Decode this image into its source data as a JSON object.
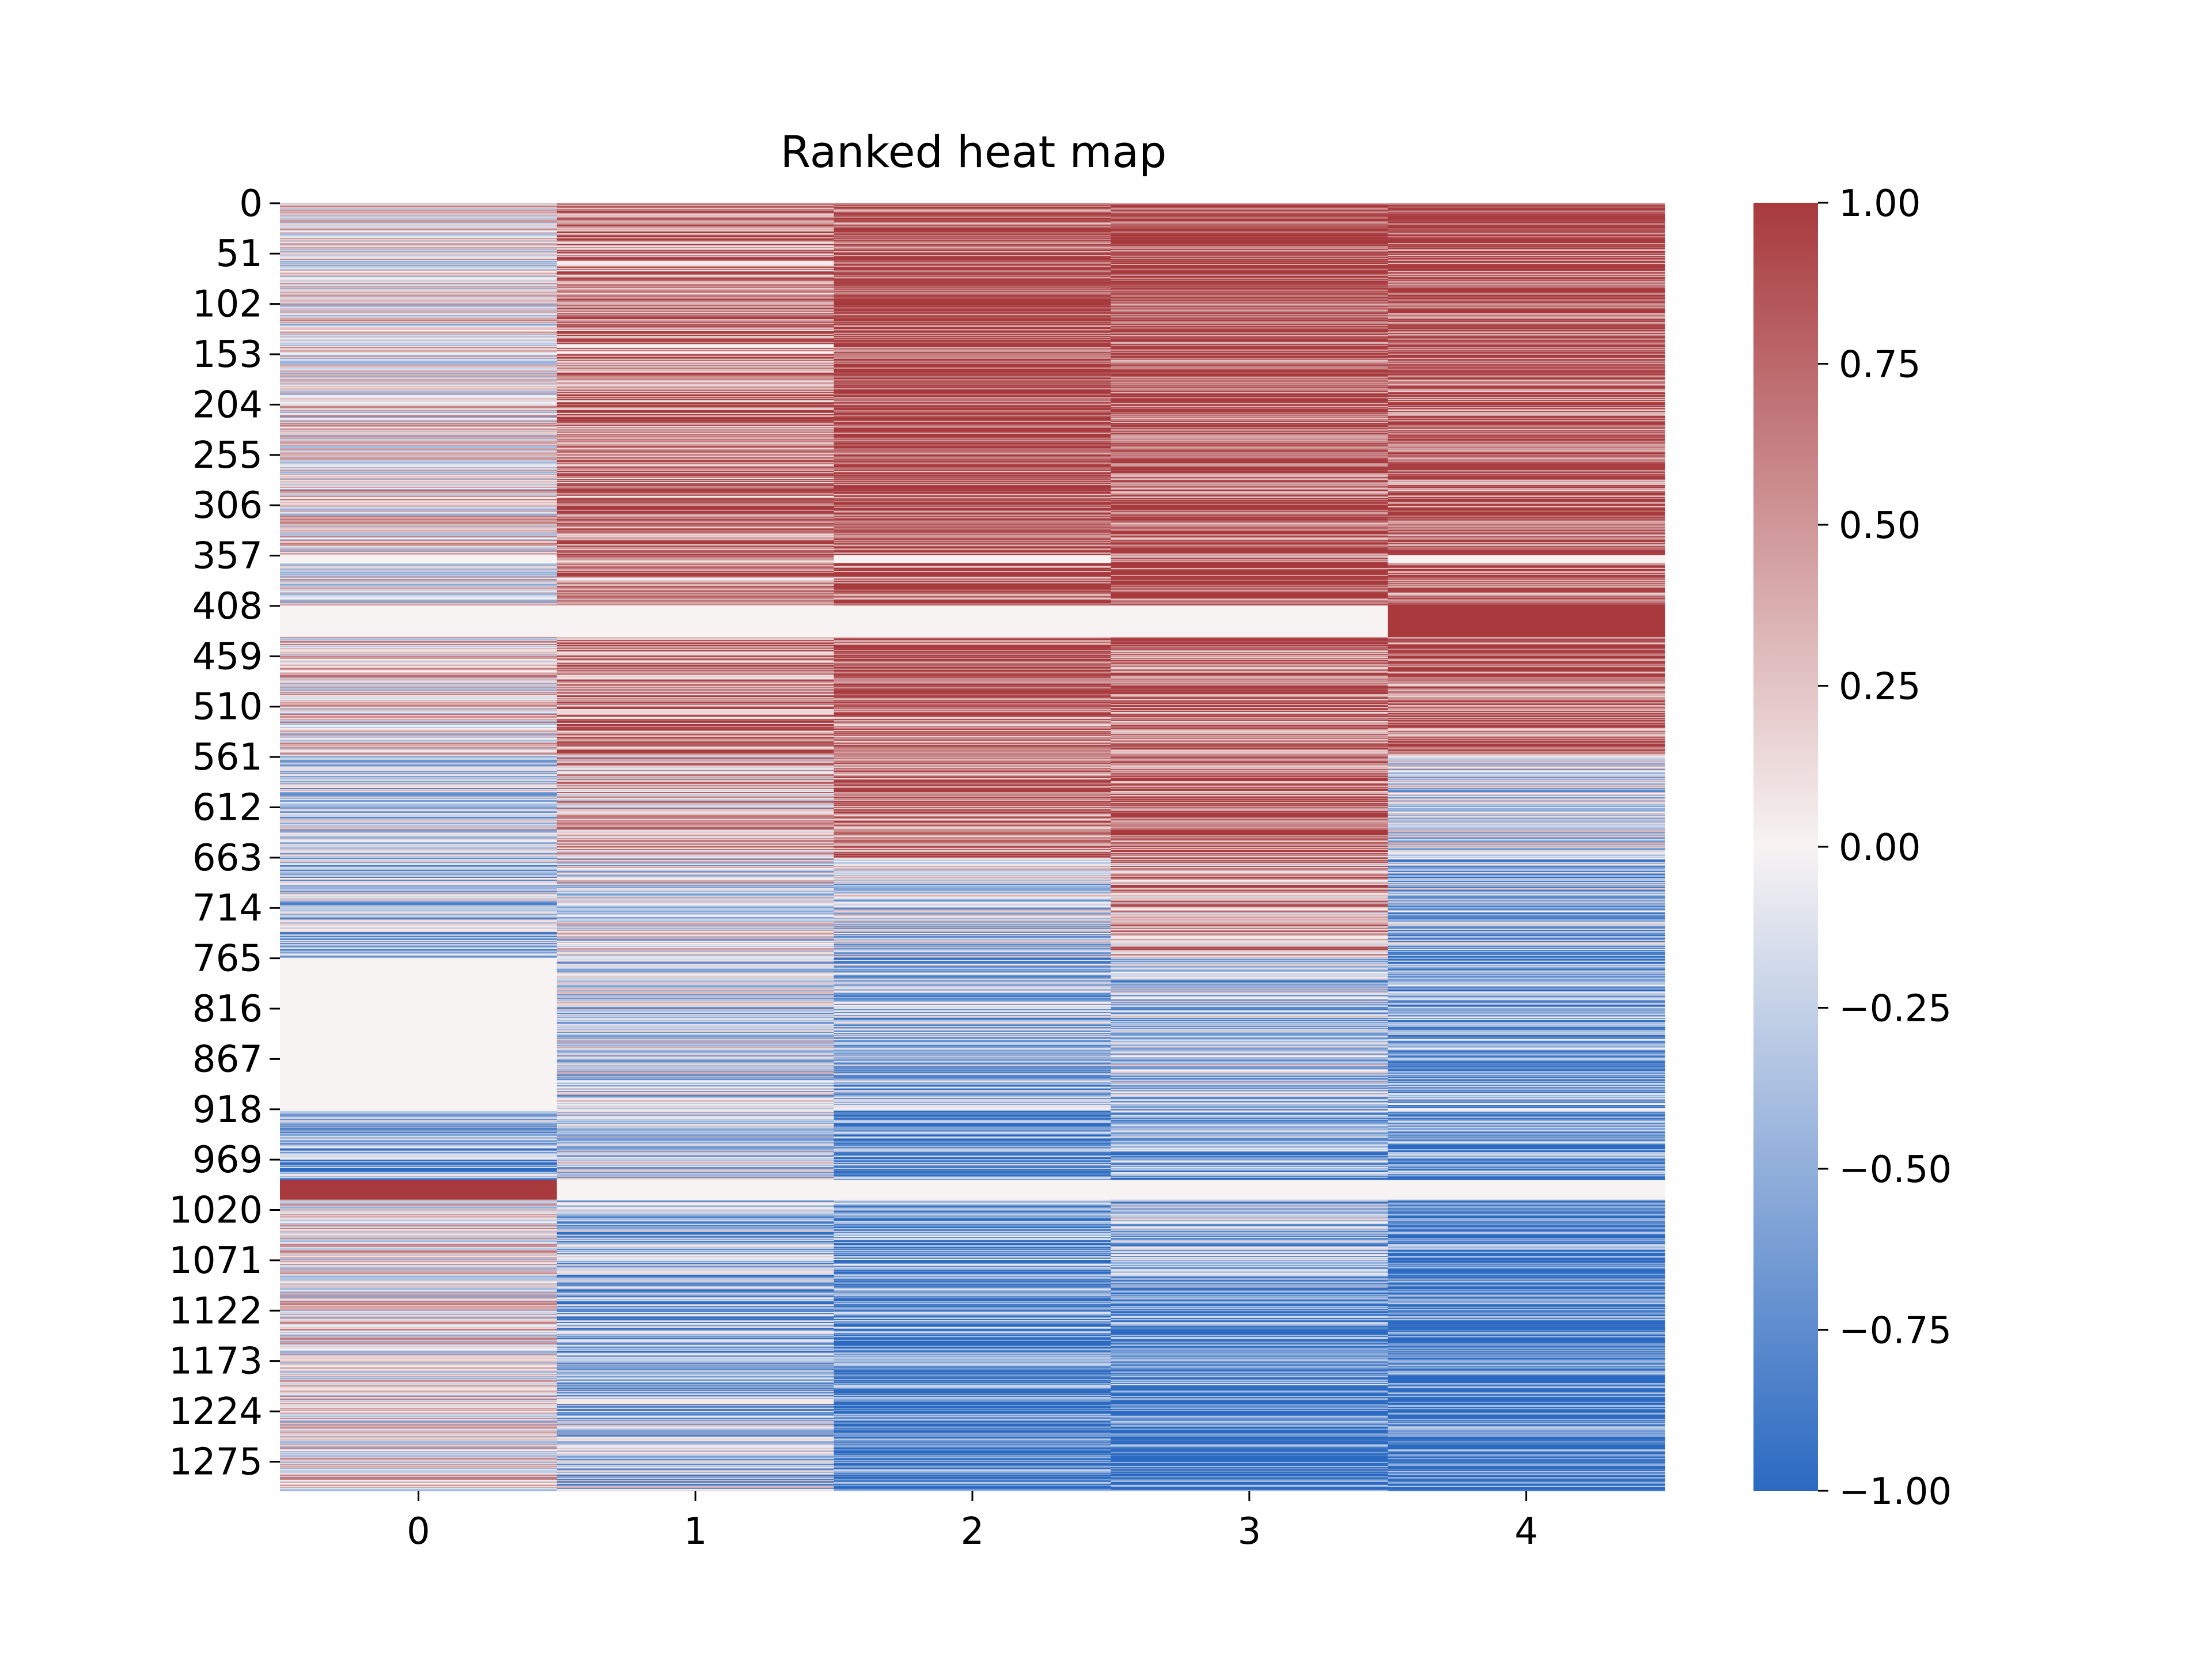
{
  "chart_data": {
    "type": "heatmap",
    "title": "Ranked heat map",
    "xlabel": "",
    "ylabel": "",
    "n_rows": 1305,
    "n_cols": 5,
    "x_tick_labels": [
      "0",
      "1",
      "2",
      "3",
      "4"
    ],
    "y_tick_labels": [
      "0",
      "51",
      "102",
      "153",
      "204",
      "255",
      "306",
      "357",
      "408",
      "459",
      "510",
      "561",
      "612",
      "663",
      "714",
      "765",
      "816",
      "867",
      "918",
      "969",
      "1020",
      "1071",
      "1122",
      "1173",
      "1224",
      "1275"
    ],
    "y_tick_step": 51,
    "value_range": [
      -1.0,
      1.0
    ],
    "colormap": {
      "low": "#2b6ac2",
      "mid": "#f7f3f3",
      "high": "#a83a3e"
    },
    "colorbar": {
      "placement": "right",
      "tick_values": [
        1.0,
        0.75,
        0.5,
        0.25,
        0.0,
        -0.25,
        -0.5,
        -0.75,
        -1.0
      ],
      "tick_labels": [
        "1.00",
        "0.75",
        "0.50",
        "0.25",
        "0.00",
        "−0.25",
        "−0.50",
        "−0.75",
        "−1.00"
      ]
    },
    "row_bands": [
      {
        "start": 0,
        "end": 51,
        "mean": [
          0.05,
          0.55,
          0.8,
          0.9,
          0.9
        ]
      },
      {
        "start": 51,
        "end": 153,
        "mean": [
          0.03,
          0.6,
          0.9,
          0.92,
          0.85
        ]
      },
      {
        "start": 153,
        "end": 255,
        "mean": [
          0.05,
          0.6,
          0.9,
          0.85,
          0.8
        ]
      },
      {
        "start": 255,
        "end": 357,
        "mean": [
          0.1,
          0.65,
          0.85,
          0.85,
          0.8
        ]
      },
      {
        "start": 357,
        "end": 365,
        "mean": [
          0.0,
          0.2,
          0.0,
          0.85,
          0.0
        ]
      },
      {
        "start": 365,
        "end": 408,
        "mean": [
          0.05,
          0.6,
          0.8,
          0.9,
          0.75
        ]
      },
      {
        "start": 408,
        "end": 440,
        "mean": [
          0.0,
          0.0,
          0.0,
          0.0,
          1.0
        ]
      },
      {
        "start": 440,
        "end": 560,
        "mean": [
          0.15,
          0.6,
          0.75,
          0.7,
          0.75
        ]
      },
      {
        "start": 560,
        "end": 665,
        "mean": [
          -0.3,
          0.3,
          0.65,
          0.7,
          -0.2
        ]
      },
      {
        "start": 665,
        "end": 765,
        "mean": [
          -0.3,
          -0.1,
          -0.2,
          0.45,
          -0.4
        ]
      },
      {
        "start": 765,
        "end": 920,
        "mean": [
          0.0,
          -0.2,
          -0.4,
          -0.3,
          -0.55
        ]
      },
      {
        "start": 920,
        "end": 990,
        "mean": [
          -0.4,
          -0.2,
          -0.7,
          -0.55,
          -0.7
        ]
      },
      {
        "start": 990,
        "end": 1010,
        "mean": [
          1.0,
          0.0,
          0.0,
          0.0,
          0.0
        ]
      },
      {
        "start": 1010,
        "end": 1100,
        "mean": [
          0.1,
          -0.4,
          -0.6,
          -0.4,
          -0.85
        ]
      },
      {
        "start": 1100,
        "end": 1200,
        "mean": [
          0.05,
          -0.5,
          -0.75,
          -0.75,
          -0.85
        ]
      },
      {
        "start": 1200,
        "end": 1305,
        "mean": [
          0.08,
          -0.3,
          -0.85,
          -0.9,
          -0.85
        ]
      }
    ]
  }
}
